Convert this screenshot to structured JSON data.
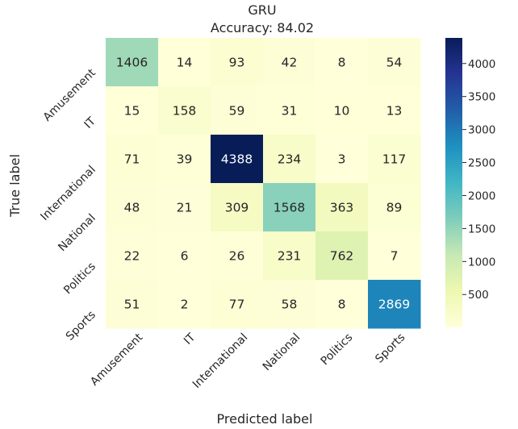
{
  "chart_data": {
    "type": "heatmap",
    "title": "GRU",
    "subtitle": "Accuracy: 84.02",
    "xlabel": "Predicted label",
    "ylabel": "True label",
    "x_categories": [
      "Amusement",
      "IT",
      "International",
      "National",
      "Politics",
      "Sports"
    ],
    "y_categories": [
      "Amusement",
      "IT",
      "International",
      "National",
      "Politics",
      "Sports"
    ],
    "values": [
      [
        1406,
        14,
        93,
        42,
        8,
        54
      ],
      [
        15,
        158,
        59,
        31,
        10,
        13
      ],
      [
        71,
        39,
        4388,
        234,
        3,
        117
      ],
      [
        48,
        21,
        309,
        1568,
        363,
        89
      ],
      [
        22,
        6,
        26,
        231,
        762,
        7
      ],
      [
        51,
        2,
        77,
        58,
        8,
        2869
      ]
    ],
    "colormap": "YlGnBu",
    "color_range": [
      2,
      4388
    ],
    "colorbar_ticks": [
      500,
      1000,
      1500,
      2000,
      2500,
      3000,
      3500,
      4000
    ],
    "colorbar_tick_labels": [
      "500",
      "1000",
      "1500",
      "2000",
      "2500",
      "3000",
      "3500",
      "4000"
    ],
    "grid": false
  }
}
